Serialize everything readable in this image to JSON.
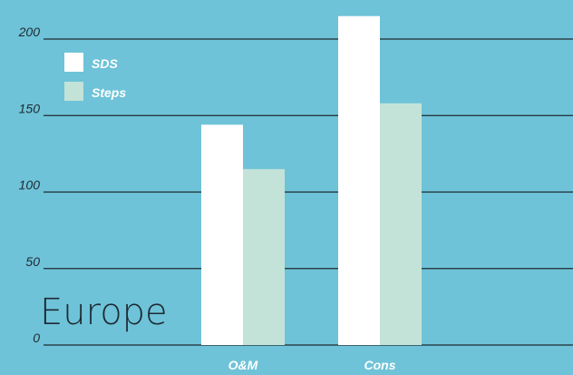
{
  "chart_data": {
    "type": "bar",
    "title": "Europe",
    "xlabel": "",
    "ylabel": "",
    "categories": [
      "O&M",
      "Cons"
    ],
    "series": [
      {
        "name": "SDS",
        "values": [
          144,
          215
        ],
        "color": "#ffffff"
      },
      {
        "name": "Steps",
        "values": [
          115,
          158
        ],
        "color": "#c3e3d8"
      }
    ],
    "ylim": [
      0,
      200
    ],
    "yticks": [
      "0",
      "50",
      "100",
      "150",
      "200"
    ],
    "grid": true,
    "legend_position": "top-left",
    "background_color": "#6ec3d8",
    "gridline_color": "#1f2a33"
  }
}
